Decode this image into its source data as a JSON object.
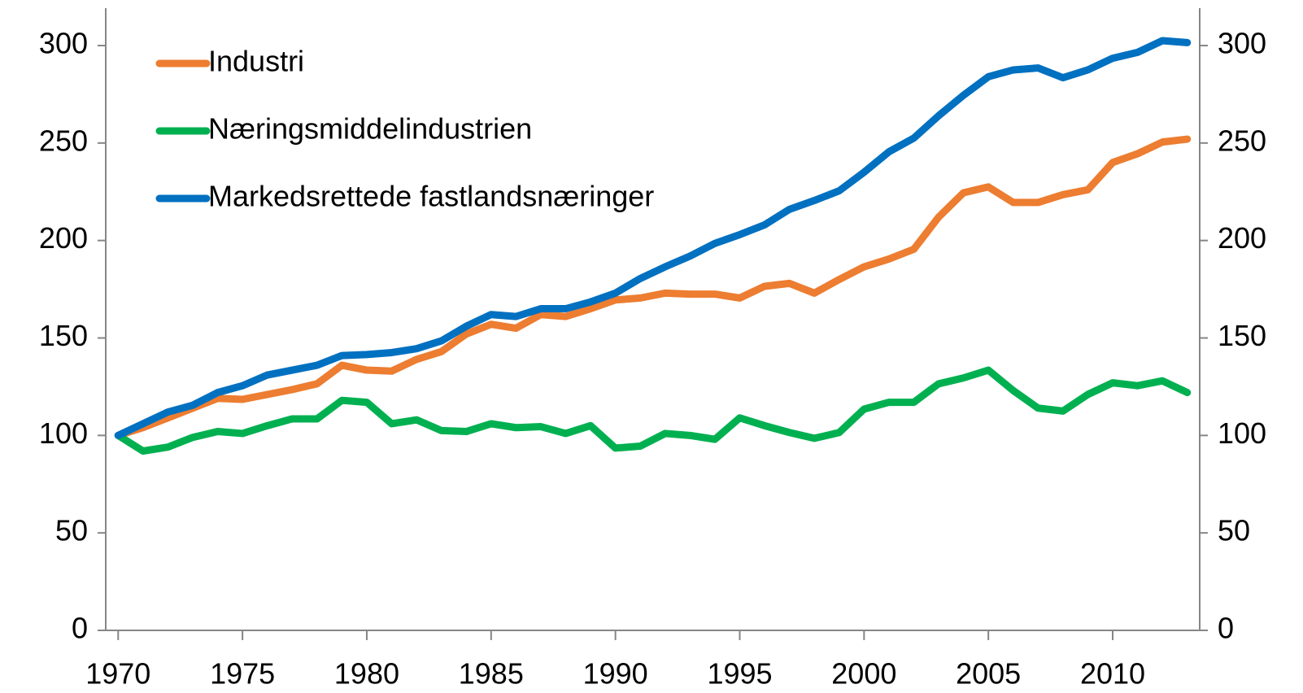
{
  "chart_data": {
    "type": "line",
    "x": [
      1970,
      1971,
      1972,
      1973,
      1974,
      1975,
      1976,
      1977,
      1978,
      1979,
      1980,
      1981,
      1982,
      1983,
      1984,
      1985,
      1986,
      1987,
      1988,
      1989,
      1990,
      1991,
      1992,
      1993,
      1994,
      1995,
      1996,
      1997,
      1998,
      1999,
      2000,
      2001,
      2002,
      2003,
      2004,
      2005,
      2006,
      2007,
      2008,
      2009,
      2010,
      2011,
      2012,
      2013
    ],
    "series": [
      {
        "name": "Industri",
        "color": "#ed7d31",
        "values": [
          100,
          104,
          109,
          114,
          119,
          118.5,
          121,
          123.5,
          126.5,
          136,
          133.5,
          133,
          139,
          143,
          152,
          157,
          155,
          162,
          161,
          165,
          169.5,
          170.5,
          173,
          172.5,
          172.5,
          170.5,
          176.5,
          178,
          173,
          180,
          186.5,
          190.5,
          195.5,
          212,
          224.5,
          227.5,
          219.5,
          219.5,
          223.5,
          226,
          240,
          244.5,
          250.5,
          252
        ]
      },
      {
        "name": "Næringsmiddelindustrien",
        "color": "#00b050",
        "values": [
          100,
          92,
          94,
          99,
          102,
          101,
          105,
          108.5,
          108.5,
          118,
          117,
          106,
          108,
          102.5,
          102,
          106,
          104,
          104.5,
          101,
          105,
          93.5,
          94.5,
          101,
          100,
          98,
          109,
          105,
          101.5,
          98.5,
          101.5,
          113.5,
          117,
          117,
          126.5,
          129.5,
          133.5,
          123,
          114,
          112.5,
          121,
          127,
          125.5,
          128,
          122
        ]
      },
      {
        "name": "Markedsrettede fastlandsnæringer",
        "color": "#0070c0",
        "values": [
          100,
          106,
          112,
          115.5,
          122,
          125.5,
          131,
          133.5,
          136,
          141,
          141.5,
          142.5,
          144.5,
          148.5,
          156,
          162,
          161,
          165,
          165,
          168.5,
          173,
          180.5,
          186.5,
          192,
          198.5,
          203,
          208,
          216,
          220.5,
          225.5,
          235,
          245.5,
          252.5,
          264,
          274.5,
          284,
          287.5,
          288.5,
          283.5,
          287.5,
          293.5,
          296.5,
          302.5,
          301.5
        ]
      }
    ],
    "xlim": [
      1969.5,
      2013.5
    ],
    "xticks": [
      1970,
      1975,
      1980,
      1985,
      1990,
      1995,
      2000,
      2005,
      2010
    ],
    "ylim": [
      0,
      300
    ],
    "yticks": [
      0,
      50,
      100,
      150,
      200,
      250,
      300
    ],
    "y2lim": [
      0,
      300
    ],
    "y2ticks": [
      0,
      50,
      100,
      150,
      200,
      250,
      300
    ],
    "legend": "upper-left",
    "grid": false
  }
}
